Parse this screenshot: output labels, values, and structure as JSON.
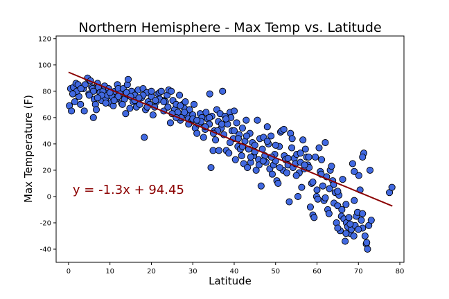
{
  "chart_data": {
    "type": "scatter",
    "title": "Northern Hemisphere - Max Temp vs. Latitude",
    "xlabel": "Latitude",
    "ylabel": "Max Temperature (F)",
    "xlim": [
      -3,
      81
    ],
    "ylim": [
      -50,
      122
    ],
    "xticks": [
      0,
      10,
      20,
      30,
      40,
      50,
      60,
      70,
      80
    ],
    "yticks": [
      -40,
      -20,
      0,
      20,
      40,
      60,
      80,
      100,
      120
    ],
    "grid": false,
    "point_color": "#4169e1",
    "point_edge_color": "#000000",
    "line_color": "#8b0000",
    "regression": {
      "slope": -1.3,
      "intercept": 94.45,
      "x_range": [
        0,
        78.2
      ]
    },
    "annotation": {
      "text": "y = -1.3x + 94.45",
      "x": 1,
      "y": 2
    },
    "points": [
      [
        0.2,
        69
      ],
      [
        0.5,
        82
      ],
      [
        0.7,
        65
      ],
      [
        1.2,
        83
      ],
      [
        1.5,
        72
      ],
      [
        1.8,
        86
      ],
      [
        2.3,
        85
      ],
      [
        2.5,
        76
      ],
      [
        2.9,
        70
      ],
      [
        3.6,
        82
      ],
      [
        3.8,
        65
      ],
      [
        4.6,
        90
      ],
      [
        4.9,
        78
      ],
      [
        5.3,
        88
      ],
      [
        5.6,
        83
      ],
      [
        5.8,
        82
      ],
      [
        6.0,
        60
      ],
      [
        6.2,
        74
      ],
      [
        6.5,
        70
      ],
      [
        6.7,
        66
      ],
      [
        6.9,
        81
      ],
      [
        7.0,
        86
      ],
      [
        7.2,
        83
      ],
      [
        7.6,
        79
      ],
      [
        8.0,
        73
      ],
      [
        8.3,
        80
      ],
      [
        8.7,
        84
      ],
      [
        9.0,
        75
      ],
      [
        9.4,
        77
      ],
      [
        9.7,
        82
      ],
      [
        10.0,
        71
      ],
      [
        10.5,
        76
      ],
      [
        10.8,
        69
      ],
      [
        11.2,
        80
      ],
      [
        11.5,
        74
      ],
      [
        11.8,
        85
      ],
      [
        12.0,
        82
      ],
      [
        12.4,
        78
      ],
      [
        12.8,
        71
      ],
      [
        13.2,
        82
      ],
      [
        13.5,
        74
      ],
      [
        13.8,
        63
      ],
      [
        14.0,
        78
      ],
      [
        14.2,
        85
      ],
      [
        14.4,
        89
      ],
      [
        14.8,
        67
      ],
      [
        15.2,
        80
      ],
      [
        15.6,
        72
      ],
      [
        16.0,
        77
      ],
      [
        16.4,
        68
      ],
      [
        16.8,
        81
      ],
      [
        17.2,
        70
      ],
      [
        17.6,
        75
      ],
      [
        18.0,
        82
      ],
      [
        18.3,
        45
      ],
      [
        18.6,
        66
      ],
      [
        18.9,
        79
      ],
      [
        19.2,
        72
      ],
      [
        19.6,
        70
      ],
      [
        20.0,
        76
      ],
      [
        20.4,
        62
      ],
      [
        20.8,
        68
      ],
      [
        21.2,
        72
      ],
      [
        21.6,
        78
      ],
      [
        22.0,
        79
      ],
      [
        22.4,
        80
      ],
      [
        22.8,
        73
      ],
      [
        23.0,
        65
      ],
      [
        23.4,
        72
      ],
      [
        23.8,
        77
      ],
      [
        24.2,
        81
      ],
      [
        24.6,
        56
      ],
      [
        24.8,
        80
      ],
      [
        25.2,
        73
      ],
      [
        25.6,
        66
      ],
      [
        26.0,
        70
      ],
      [
        26.4,
        64
      ],
      [
        26.8,
        77
      ],
      [
        27.0,
        58
      ],
      [
        27.2,
        60
      ],
      [
        27.6,
        70
      ],
      [
        28.0,
        67
      ],
      [
        28.2,
        72
      ],
      [
        28.6,
        62
      ],
      [
        28.9,
        59
      ],
      [
        29.2,
        66
      ],
      [
        29.6,
        57
      ],
      [
        30.0,
        62
      ],
      [
        30.3,
        70
      ],
      [
        30.6,
        52
      ],
      [
        31.0,
        48
      ],
      [
        31.4,
        55
      ],
      [
        31.8,
        63
      ],
      [
        32.2,
        60
      ],
      [
        32.6,
        45
      ],
      [
        33.0,
        51
      ],
      [
        33.2,
        64
      ],
      [
        33.6,
        59
      ],
      [
        34.0,
        55
      ],
      [
        34.1,
        78
      ],
      [
        34.4,
        22
      ],
      [
        34.6,
        61
      ],
      [
        34.9,
        35
      ],
      [
        35.2,
        50
      ],
      [
        35.5,
        43
      ],
      [
        35.8,
        66
      ],
      [
        36.2,
        57
      ],
      [
        36.3,
        35
      ],
      [
        36.6,
        63
      ],
      [
        36.9,
        52
      ],
      [
        37.2,
        80
      ],
      [
        37.5,
        47
      ],
      [
        37.8,
        61
      ],
      [
        38.1,
        35
      ],
      [
        38.4,
        55
      ],
      [
        38.7,
        33
      ],
      [
        39.0,
        64
      ],
      [
        39.2,
        60
      ],
      [
        39.5,
        50
      ],
      [
        39.8,
        44
      ],
      [
        40.0,
        65
      ],
      [
        40.3,
        28
      ],
      [
        40.6,
        56
      ],
      [
        40.9,
        38
      ],
      [
        41.2,
        47
      ],
      [
        41.5,
        36
      ],
      [
        41.8,
        31
      ],
      [
        42.0,
        52
      ],
      [
        42.3,
        25
      ],
      [
        42.6,
        42
      ],
      [
        42.9,
        58
      ],
      [
        43.2,
        22
      ],
      [
        43.5,
        36
      ],
      [
        43.8,
        48
      ],
      [
        44.0,
        26
      ],
      [
        44.4,
        41
      ],
      [
        44.7,
        31
      ],
      [
        45.0,
        39
      ],
      [
        45.3,
        20
      ],
      [
        45.6,
        58
      ],
      [
        45.9,
        28
      ],
      [
        46.2,
        44
      ],
      [
        46.5,
        8
      ],
      [
        46.8,
        36
      ],
      [
        47.1,
        45
      ],
      [
        47.4,
        31
      ],
      [
        47.7,
        26
      ],
      [
        48.0,
        53
      ],
      [
        48.3,
        40
      ],
      [
        48.6,
        21
      ],
      [
        48.9,
        46
      ],
      [
        49.2,
        17
      ],
      [
        49.5,
        24
      ],
      [
        49.8,
        32
      ],
      [
        50.0,
        27
      ],
      [
        50.3,
        12
      ],
      [
        50.6,
        10
      ],
      [
        50.9,
        38
      ],
      [
        51.2,
        49
      ],
      [
        51.5,
        50
      ],
      [
        51.8,
        20
      ],
      [
        52.1,
        31
      ],
      [
        52.4,
        28
      ],
      [
        52.7,
        18
      ],
      [
        53.0,
        24
      ],
      [
        53.3,
        -4
      ],
      [
        53.6,
        48
      ],
      [
        53.9,
        37
      ],
      [
        54.2,
        22
      ],
      [
        54.5,
        29
      ],
      [
        54.8,
        25
      ],
      [
        55.1,
        32
      ],
      [
        55.4,
        0
      ],
      [
        55.7,
        18
      ],
      [
        56.0,
        26
      ],
      [
        56.3,
        7
      ],
      [
        56.6,
        43
      ],
      [
        56.9,
        21
      ],
      [
        57.2,
        36
      ],
      [
        57.5,
        30
      ],
      [
        57.8,
        24
      ],
      [
        58.1,
        22
      ],
      [
        58.4,
        -8
      ],
      [
        58.7,
        10
      ],
      [
        59.0,
        -14
      ],
      [
        59.3,
        -16
      ],
      [
        59.6,
        30
      ],
      [
        59.9,
        0
      ],
      [
        60.2,
        -2
      ],
      [
        60.5,
        37
      ],
      [
        60.8,
        19
      ],
      [
        61.1,
        28
      ],
      [
        61.4,
        8
      ],
      [
        61.7,
        -3
      ],
      [
        62.0,
        41
      ],
      [
        62.3,
        15
      ],
      [
        62.6,
        -10
      ],
      [
        62.9,
        -13
      ],
      [
        63.2,
        20
      ],
      [
        63.5,
        23
      ],
      [
        63.8,
        12
      ],
      [
        64.1,
        -5
      ],
      [
        64.4,
        3
      ],
      [
        64.7,
        -20
      ],
      [
        65.0,
        -7
      ],
      [
        65.3,
        1
      ],
      [
        65.6,
        -26
      ],
      [
        65.9,
        -15
      ],
      [
        66.2,
        13
      ],
      [
        66.5,
        -17
      ],
      [
        66.8,
        -34
      ],
      [
        67.1,
        -20
      ],
      [
        67.4,
        -23
      ],
      [
        67.7,
        -16
      ],
      [
        68.0,
        -28
      ],
      [
        68.3,
        -25
      ],
      [
        68.6,
        25
      ],
      [
        68.9,
        -30
      ],
      [
        69.2,
        -22
      ],
      [
        69.5,
        -15
      ],
      [
        69.8,
        -12
      ],
      [
        70.1,
        16
      ],
      [
        70.4,
        5
      ],
      [
        70.7,
        -18
      ],
      [
        71.0,
        -24
      ],
      [
        71.3,
        33
      ],
      [
        71.6,
        -30
      ],
      [
        71.9,
        -36
      ],
      [
        72.2,
        -40
      ],
      [
        72.5,
        -22
      ],
      [
        72.8,
        20
      ],
      [
        73.1,
        -18
      ],
      [
        77.5,
        3
      ],
      [
        78.1,
        7
      ],
      [
        60.0,
        5
      ],
      [
        62.0,
        -1
      ],
      [
        64.0,
        9
      ],
      [
        66.0,
        -10
      ],
      [
        67.0,
        -28
      ],
      [
        69.0,
        19
      ],
      [
        70.0,
        -25
      ],
      [
        71.0,
        30
      ],
      [
        68.0,
        -21
      ],
      [
        65.0,
        -24
      ],
      [
        58.0,
        30
      ],
      [
        56.0,
        33
      ],
      [
        54.0,
        44
      ],
      [
        52.0,
        51
      ],
      [
        50.0,
        39
      ],
      [
        48.0,
        42
      ],
      [
        46.0,
        24
      ],
      [
        44.0,
        30
      ],
      [
        42.0,
        38
      ],
      [
        40.0,
        50
      ],
      [
        38.0,
        59
      ],
      [
        36.0,
        50
      ],
      [
        34.0,
        60
      ],
      [
        32.0,
        57
      ],
      [
        30.0,
        59
      ],
      [
        28.0,
        64
      ],
      [
        26.0,
        60
      ],
      [
        24.0,
        68
      ],
      [
        22.0,
        74
      ],
      [
        20.0,
        80
      ],
      [
        18.0,
        77
      ],
      [
        16.0,
        73
      ],
      [
        14.0,
        79
      ],
      [
        12.0,
        76
      ],
      [
        10.0,
        79
      ],
      [
        8.0,
        77
      ],
      [
        6.0,
        80
      ],
      [
        4.0,
        85
      ],
      [
        2.0,
        80
      ],
      [
        1.0,
        78
      ],
      [
        3.0,
        82
      ],
      [
        5.0,
        77
      ],
      [
        7.0,
        75
      ],
      [
        9.0,
        71
      ],
      [
        11.0,
        73
      ],
      [
        13.0,
        70
      ],
      [
        15.0,
        76
      ],
      [
        17.0,
        75
      ],
      [
        19.0,
        68
      ],
      [
        21.0,
        73
      ],
      [
        23.0,
        72
      ],
      [
        25.0,
        63
      ],
      [
        27.0,
        69
      ],
      [
        29.0,
        55
      ],
      [
        31.0,
        58
      ],
      [
        33.0,
        53
      ],
      [
        35.0,
        48
      ],
      [
        37.0,
        55
      ],
      [
        39.0,
        41
      ],
      [
        41.0,
        44
      ],
      [
        43.0,
        46
      ],
      [
        45.0,
        34
      ],
      [
        47.0,
        27
      ],
      [
        49.0,
        30
      ],
      [
        51.0,
        22
      ],
      [
        53.0,
        29
      ],
      [
        55.0,
        16
      ],
      [
        57.0,
        24
      ],
      [
        59.0,
        11
      ],
      [
        61.0,
        17
      ],
      [
        63.0,
        6
      ],
      [
        65.0,
        4
      ],
      [
        67.0,
        -6
      ],
      [
        69.0,
        -3
      ],
      [
        71.0,
        -13
      ],
      [
        72.0,
        -35
      ]
    ]
  }
}
